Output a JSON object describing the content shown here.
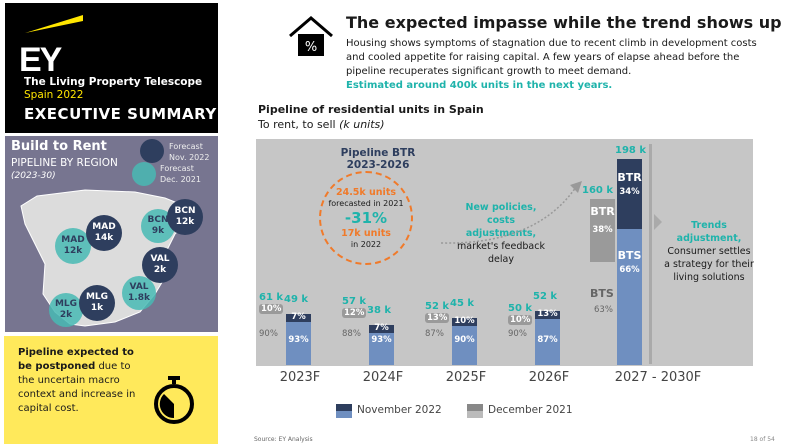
{
  "brand": {
    "logo": "EY",
    "telescope": "The Living Property Telescope",
    "edition": "Spain 2022",
    "section": "EXECUTIVE SUMMARY"
  },
  "region_panel": {
    "title": "Build to Rent",
    "subtitle": "PIPELINE BY REGION",
    "period": "(2023-30)",
    "legend": [
      {
        "label": "Forecast Nov. 2022",
        "color": "#2e3e5e"
      },
      {
        "label": "Forecast Dec. 2021",
        "color": "#48bab4"
      }
    ],
    "bubbles": [
      {
        "city": "MAD",
        "value": "12k",
        "series": "dec2021"
      },
      {
        "city": "MAD",
        "value": "14k",
        "series": "nov2022"
      },
      {
        "city": "BCN",
        "value": "9k",
        "series": "dec2021"
      },
      {
        "city": "BCN",
        "value": "12k",
        "series": "nov2022"
      },
      {
        "city": "VAL",
        "value": "1.8k",
        "series": "dec2021"
      },
      {
        "city": "VAL",
        "value": "2k",
        "series": "nov2022"
      },
      {
        "city": "MLG",
        "value": "2k",
        "series": "dec2021"
      },
      {
        "city": "MLG",
        "value": "1k",
        "series": "nov2022"
      }
    ]
  },
  "note": {
    "bold": "Pipeline expected to be postponed",
    "rest": " due to the uncertain macro context and increase in capital cost.",
    "icon": "stopwatch-icon"
  },
  "header": {
    "icon": "house-percent-icon",
    "title": "The expected impasse while the trend shows up",
    "body": "Housing shows symptoms of stagnation due to recent climb in development costs and cooled appetite for raising capital. A few years of elapse ahead before the pipeline recuperates significant growth to meet demand.",
    "highlight": "Estimated around 400k units in the next years."
  },
  "chart_data": {
    "type": "bar",
    "title": "Pipeline of residential units in Spain",
    "subtitle": "To rent, to sell",
    "unit": "(k units)",
    "categories": [
      "2023F",
      "2024F",
      "2025F",
      "2026F",
      "2027 - 2030F"
    ],
    "series": [
      {
        "name": "November 2022",
        "totals": [
          49,
          38,
          45,
          52,
          198
        ],
        "btr_pct": [
          7,
          7,
          10,
          13,
          34
        ],
        "bts_pct": [
          93,
          93,
          90,
          87,
          66
        ],
        "colors": {
          "btr": "#2e3e5e",
          "bts": "#6f8fc0"
        }
      },
      {
        "name": "December 2021",
        "totals": [
          61,
          57,
          52,
          50,
          160
        ],
        "btr_pct": [
          10,
          12,
          13,
          10,
          38
        ],
        "bts_pct": [
          90,
          88,
          87,
          90,
          63
        ],
        "colors": {
          "btr": "#9a9a9a",
          "bts": "#c6c6c6"
        }
      }
    ],
    "segment_labels": {
      "btr": "BTR",
      "bts": "BTS"
    },
    "total_suffix": " k",
    "annotations": {
      "pipeline_title": "Pipeline BTR",
      "pipeline_period": "2023-2026",
      "forecast_2021_value": "24.5k units",
      "forecast_2021_label": "forecasted in 2021",
      "change": "-31%",
      "value_2022": "17k units",
      "label_2022": "in 2022",
      "policy_teal": "New policies, costs adjustments,",
      "policy_dark": "market's feedback delay",
      "trend_teal": "Trends adjustment,",
      "trend_dark": "Consumer settles a strategy for their living solutions"
    }
  },
  "footer": {
    "source": "Source: EY Analysis",
    "page": "18 of 54"
  }
}
